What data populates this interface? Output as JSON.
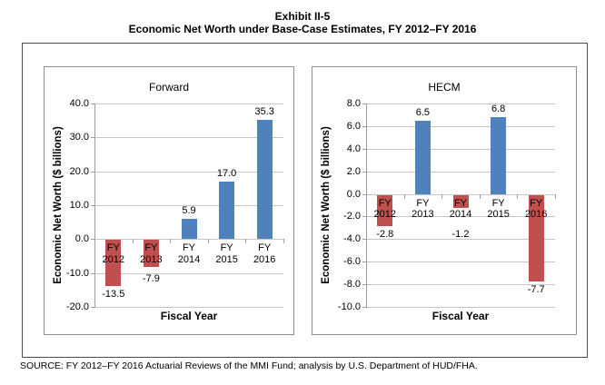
{
  "figure": {
    "title_line1": "Exhibit II-5",
    "title_line2": "Economic Net Worth under Base-Case Estimates, FY 2012–FY 2016",
    "source": "SOURCE: FY 2012–FY 2016 Actuarial Reviews of the MMI Fund; analysis by U.S. Department of HUD/FHA."
  },
  "colors": {
    "positive_bar": "#4F81BD",
    "negative_bar": "#C0504D",
    "gridline": "#C6C6C6",
    "axis": "#9E9E9E",
    "text": "#000000"
  },
  "chart_data": [
    {
      "type": "bar",
      "title": "Forward",
      "xlabel": "Fiscal Year",
      "ylabel": "Economic Net Worth ($ billions)",
      "categories": [
        "FY 2012",
        "FY 2013",
        "FY 2014",
        "FY 2015",
        "FY 2016"
      ],
      "values": [
        -13.5,
        -7.9,
        5.9,
        17.0,
        35.3
      ],
      "value_labels": [
        "-13.5",
        "-7.9",
        "5.9",
        "17.0",
        "35.3"
      ],
      "ylim": [
        -20,
        40
      ],
      "ytick_step": 10,
      "yticks": [
        "40.0",
        "30.0",
        "20.0",
        "10.0",
        "0.0",
        "-10.0",
        "-20.0"
      ],
      "grid": true,
      "legend_position": "none"
    },
    {
      "type": "bar",
      "title": "HECM",
      "xlabel": "Fiscal Year",
      "ylabel": "Economic Net Worth ($ billions)",
      "categories": [
        "FY 2012",
        "FY 2013",
        "FY 2014",
        "FY 2015",
        "FY 2016"
      ],
      "values": [
        -2.8,
        6.5,
        -1.2,
        6.8,
        -7.7
      ],
      "value_labels": [
        "-2.8",
        "6.5",
        "-1.2",
        "6.8",
        "-7.7"
      ],
      "ylim": [
        -10,
        8
      ],
      "ytick_step": 2,
      "yticks": [
        "8.0",
        "6.0",
        "4.0",
        "2.0",
        "0.0",
        "-2.0",
        "-4.0",
        "-6.0",
        "-8.0",
        "-10.0"
      ],
      "grid": true,
      "legend_position": "none"
    }
  ]
}
